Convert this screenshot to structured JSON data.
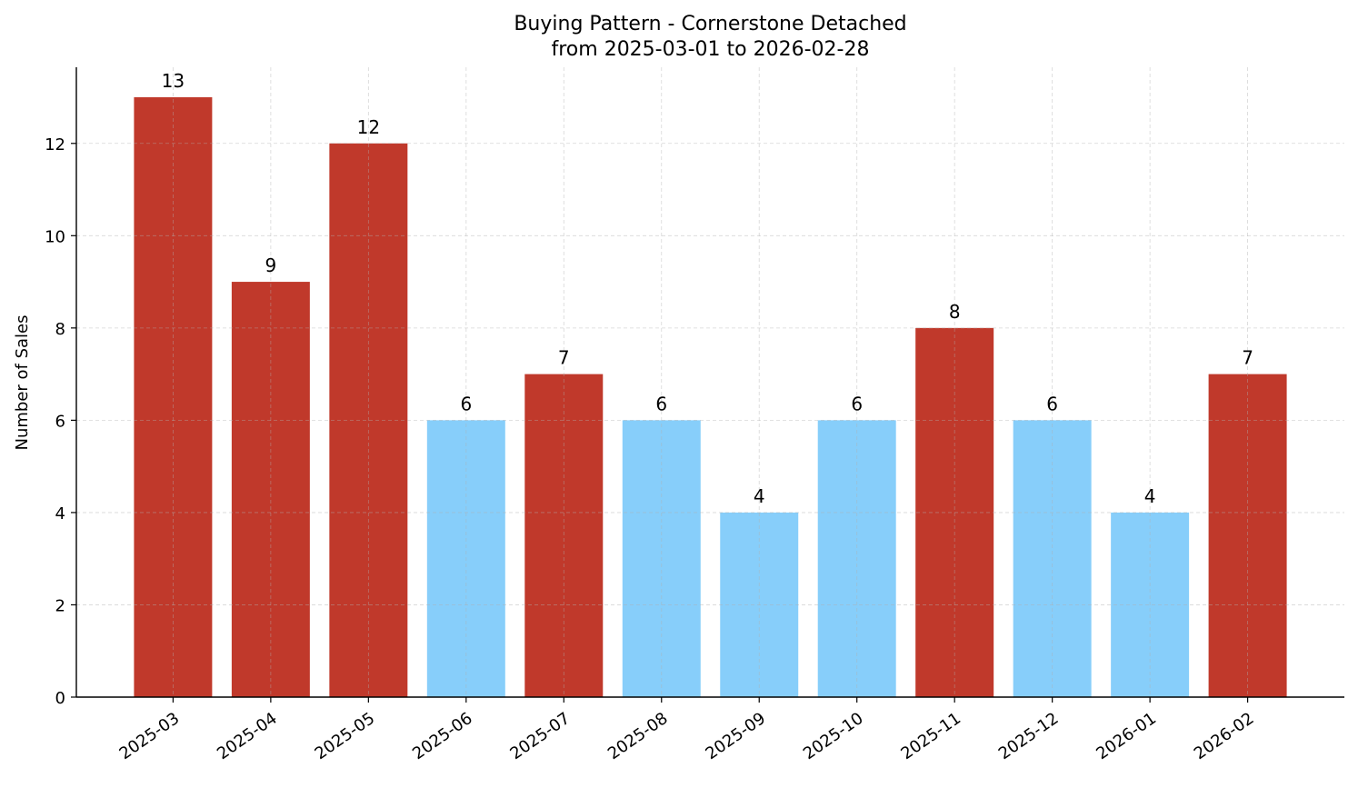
{
  "chart_data": {
    "type": "bar",
    "title": "Buying Pattern - Cornerstone Detached",
    "subtitle": "from 2025-03-01 to 2026-02-28",
    "xlabel": "",
    "ylabel": "Number of Sales",
    "categories": [
      "2025-03",
      "2025-04",
      "2025-05",
      "2025-06",
      "2025-07",
      "2025-08",
      "2025-09",
      "2025-10",
      "2025-11",
      "2025-12",
      "2026-01",
      "2026-02"
    ],
    "values": [
      13,
      9,
      12,
      6,
      7,
      6,
      4,
      6,
      8,
      6,
      4,
      7
    ],
    "bar_colors": [
      "#c0392b",
      "#c0392b",
      "#c0392b",
      "#87cefa",
      "#c0392b",
      "#87cefa",
      "#87cefa",
      "#87cefa",
      "#c0392b",
      "#87cefa",
      "#87cefa",
      "#c0392b"
    ],
    "colors": {
      "high": "#c0392b",
      "low": "#87cefa"
    },
    "ylim": [
      0,
      13.65
    ],
    "yticks": [
      0,
      2,
      4,
      6,
      8,
      10,
      12
    ],
    "grid": true,
    "legend": "none"
  }
}
